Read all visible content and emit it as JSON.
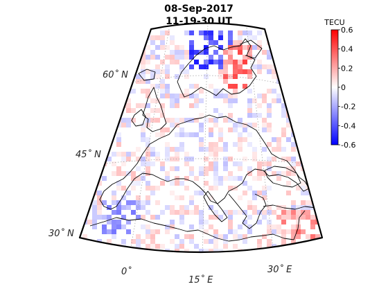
{
  "title": {
    "date": "08-Sep-2017",
    "time": "11-19-30  UT"
  },
  "colorbar": {
    "label": "TECU",
    "ticks": [
      "0.6",
      "0.4",
      "0.2",
      "0",
      "-0.2",
      "-0.4",
      "-0.6"
    ],
    "min": -0.6,
    "max": 0.6,
    "colors": {
      "low": "#0000ff",
      "mid": "#ffffff",
      "high": "#ff0000"
    }
  },
  "lat_labels": [
    {
      "label": "60˚ N",
      "value": 60
    },
    {
      "label": "45˚ N",
      "value": 45
    },
    {
      "label": "30˚ N",
      "value": 30
    }
  ],
  "lon_labels": [
    {
      "label": "0˚",
      "value": 0
    },
    {
      "label": "15˚ E",
      "value": 15
    },
    {
      "label": "30˚ E",
      "value": 30
    }
  ],
  "map": {
    "frame_color": "#000000",
    "coast_color": "#000000",
    "grid_color": "#999999"
  }
}
